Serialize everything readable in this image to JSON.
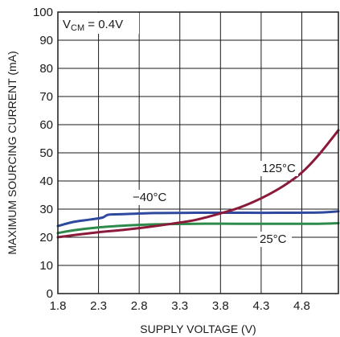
{
  "chart_data": {
    "type": "line",
    "xlabel": "SUPPLY VOLTAGE (V)",
    "ylabel": "MAXIMUM SOURCING CURRENT (mA)",
    "annotation": {
      "prefix": "V",
      "sub": "CM",
      "suffix": " = 0.4V"
    },
    "xlim": [
      1.8,
      5.25
    ],
    "ylim": [
      0,
      100
    ],
    "xticks": [
      1.8,
      2.3,
      2.8,
      3.3,
      3.8,
      4.3,
      4.8
    ],
    "xtick_labels": [
      "1.8",
      "2.3",
      "2.8",
      "3.3",
      "3.8",
      "4.3",
      "4.8"
    ],
    "yticks": [
      0,
      10,
      20,
      30,
      40,
      50,
      60,
      70,
      80,
      90,
      100
    ],
    "ytick_labels": [
      "0",
      "10",
      "20",
      "30",
      "40",
      "50",
      "60",
      "70",
      "80",
      "90",
      "100"
    ],
    "grid": true,
    "series": [
      {
        "name": "125°C",
        "color": "#8b1a3a",
        "x": [
          1.8,
          2.0,
          2.3,
          2.6,
          2.9,
          3.2,
          3.5,
          3.8,
          4.0,
          4.2,
          4.4,
          4.6,
          4.8,
          5.0,
          5.25
        ],
        "y": [
          20,
          20.8,
          21.8,
          22.6,
          23.6,
          24.8,
          26.2,
          28.5,
          30.2,
          32.5,
          35.3,
          38.7,
          43,
          49,
          58
        ]
      },
      {
        "name": "−40°C",
        "color": "#2e4a9e",
        "x": [
          1.8,
          2.0,
          2.2,
          2.35,
          2.42,
          2.6,
          3.0,
          3.5,
          4.0,
          4.5,
          5.0,
          5.25
        ],
        "y": [
          24,
          25.5,
          26.3,
          27,
          28,
          28.2,
          28.6,
          28.7,
          28.7,
          28.7,
          28.8,
          29.2
        ]
      },
      {
        "name": "25°C",
        "color": "#2e8a4a",
        "x": [
          1.8,
          2.0,
          2.3,
          2.6,
          3.0,
          3.5,
          4.0,
          4.5,
          5.0,
          5.25
        ],
        "y": [
          21.5,
          22.5,
          23.5,
          24.1,
          24.6,
          24.8,
          24.8,
          24.8,
          24.8,
          25
        ]
      }
    ]
  }
}
